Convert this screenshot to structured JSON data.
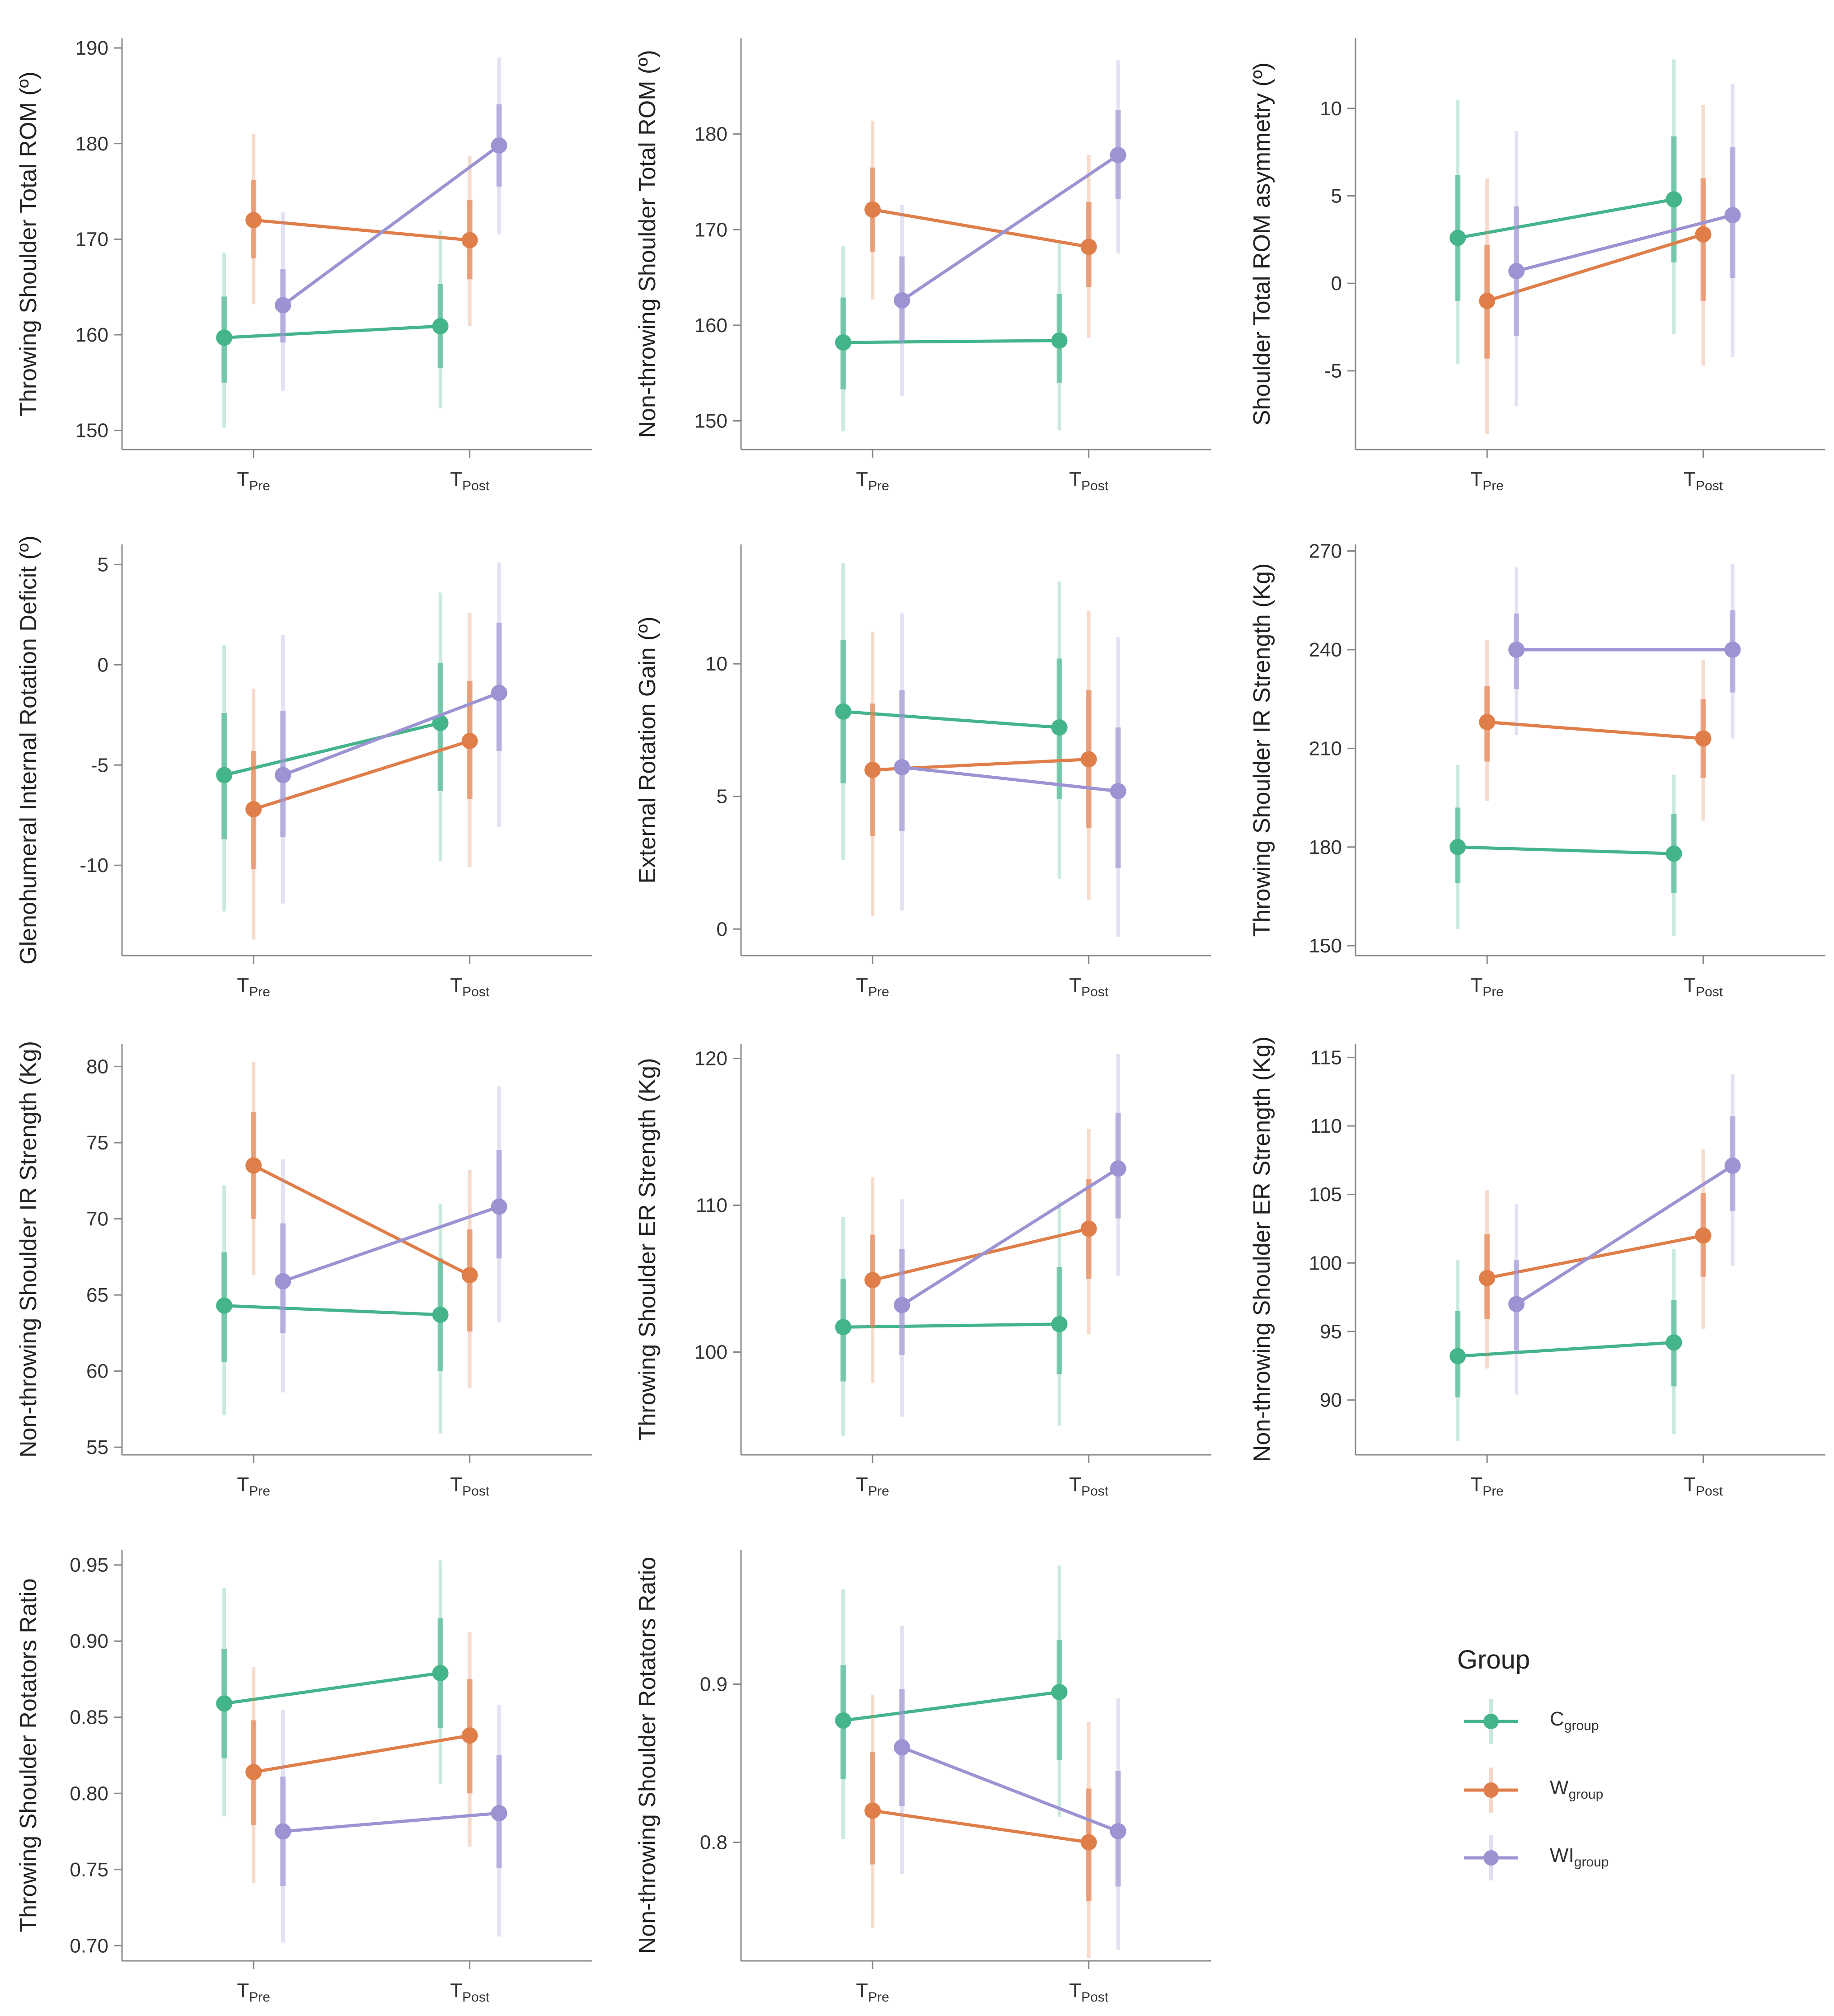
{
  "chart_data": [
    {
      "type": "line",
      "id": "p1",
      "ylabel": "Throwing Shoulder Total ROM (º)",
      "ylim": [
        148,
        191
      ],
      "yticks": [
        150,
        160,
        170,
        180,
        190
      ],
      "categories": [
        "Pre",
        "Post"
      ],
      "series": [
        {
          "name": "C",
          "values": [
            159.7,
            160.9
          ],
          "se_lo": [
            155,
            156.5
          ],
          "se_hi": [
            164,
            165.3
          ],
          "ci_lo": [
            150.3,
            152.3
          ],
          "ci_hi": [
            168.6,
            170.9
          ]
        },
        {
          "name": "W",
          "values": [
            172.0,
            169.9
          ],
          "se_lo": [
            168,
            165.8
          ],
          "se_hi": [
            176.2,
            174.1
          ],
          "ci_lo": [
            163.2,
            160.9
          ],
          "ci_hi": [
            181,
            178.7
          ]
        },
        {
          "name": "WI",
          "values": [
            163.1,
            179.8
          ],
          "se_lo": [
            159.2,
            175.5
          ],
          "se_hi": [
            166.9,
            184.1
          ],
          "ci_lo": [
            154.1,
            170.5
          ],
          "ci_hi": [
            172.8,
            189
          ]
        }
      ]
    },
    {
      "type": "line",
      "id": "p2",
      "ylabel": "Non-throwing Shoulder Total ROM (º)",
      "ylim": [
        147,
        190
      ],
      "yticks": [
        150,
        160,
        170,
        180
      ],
      "categories": [
        "Pre",
        "Post"
      ],
      "series": [
        {
          "name": "C",
          "values": [
            158.2,
            158.4
          ],
          "se_lo": [
            153.3,
            154
          ],
          "se_hi": [
            162.9,
            163.3
          ],
          "ci_lo": [
            148.9,
            149
          ],
          "ci_hi": [
            168.3,
            168.6
          ]
        },
        {
          "name": "W",
          "values": [
            172.1,
            168.2
          ],
          "se_lo": [
            167.7,
            164
          ],
          "se_hi": [
            176.5,
            172.9
          ],
          "ci_lo": [
            162.7,
            158.7
          ],
          "ci_hi": [
            181.4,
            177.8
          ]
        },
        {
          "name": "WI",
          "values": [
            162.6,
            177.8
          ],
          "se_lo": [
            158.2,
            173.2
          ],
          "se_hi": [
            167.2,
            182.5
          ],
          "ci_lo": [
            152.6,
            167.5
          ],
          "ci_hi": [
            172.6,
            187.7
          ]
        }
      ]
    },
    {
      "type": "line",
      "id": "p3",
      "ylabel": "Shoulder Total ROM asymmetry (º)",
      "ylim": [
        -9.5,
        14
      ],
      "yticks": [
        -5,
        0,
        5,
        10
      ],
      "ytick_labels": [
        "-5",
        "0",
        "5",
        "10"
      ],
      "categories": [
        "Pre",
        "Post"
      ],
      "series": [
        {
          "name": "C",
          "values": [
            2.6,
            4.8
          ],
          "se_lo": [
            -1,
            1.2
          ],
          "se_hi": [
            6.2,
            8.4
          ],
          "ci_lo": [
            -4.6,
            -2.9
          ],
          "ci_hi": [
            10.5,
            12.8
          ]
        },
        {
          "name": "W",
          "values": [
            -1.0,
            2.8
          ],
          "se_lo": [
            -4.3,
            -1
          ],
          "se_hi": [
            2.2,
            6
          ],
          "ci_lo": [
            -8.6,
            -4.7
          ],
          "ci_hi": [
            6,
            10.2
          ]
        },
        {
          "name": "WI",
          "values": [
            0.7,
            3.9
          ],
          "se_lo": [
            -3,
            0.3
          ],
          "se_hi": [
            4.4,
            7.8
          ],
          "ci_lo": [
            -7,
            -4.2
          ],
          "ci_hi": [
            8.7,
            11.4
          ]
        }
      ]
    },
    {
      "type": "line",
      "id": "p4",
      "ylabel": "Glenohumeral Internal Rotation Deficit (º)",
      "ylim": [
        -14.5,
        6
      ],
      "yticks": [
        -10,
        -5,
        0,
        5
      ],
      "ytick_labels": [
        "-10",
        "-5",
        "0",
        "5"
      ],
      "categories": [
        "Pre",
        "Post"
      ],
      "series": [
        {
          "name": "C",
          "values": [
            -5.5,
            -2.9
          ],
          "se_lo": [
            -8.7,
            -6.3
          ],
          "se_hi": [
            -2.4,
            0.1
          ],
          "ci_lo": [
            -12.3,
            -9.8
          ],
          "ci_hi": [
            1,
            3.6
          ]
        },
        {
          "name": "W",
          "values": [
            -7.2,
            -3.8
          ],
          "se_lo": [
            -10.2,
            -6.7
          ],
          "se_hi": [
            -4.3,
            -0.8
          ],
          "ci_lo": [
            -13.7,
            -10.1
          ],
          "ci_hi": [
            -1.2,
            2.6
          ]
        },
        {
          "name": "WI",
          "values": [
            -5.5,
            -1.4
          ],
          "se_lo": [
            -8.6,
            -4.3
          ],
          "se_hi": [
            -2.3,
            2.1
          ],
          "ci_lo": [
            -11.9,
            -8.1
          ],
          "ci_hi": [
            1.5,
            5.1
          ]
        }
      ]
    },
    {
      "type": "line",
      "id": "p5",
      "ylabel": "External Rotation Gain (º)",
      "ylim": [
        -1,
        14.5
      ],
      "yticks": [
        0,
        5,
        10
      ],
      "categories": [
        "Pre",
        "Post"
      ],
      "series": [
        {
          "name": "C",
          "values": [
            8.2,
            7.6
          ],
          "se_lo": [
            5.5,
            4.9
          ],
          "se_hi": [
            10.9,
            10.2
          ],
          "ci_lo": [
            2.6,
            1.9
          ],
          "ci_hi": [
            13.8,
            13.1
          ]
        },
        {
          "name": "W",
          "values": [
            6.0,
            6.4
          ],
          "se_lo": [
            3.5,
            3.8
          ],
          "se_hi": [
            8.5,
            9
          ],
          "ci_lo": [
            0.5,
            1.1
          ],
          "ci_hi": [
            11.2,
            12
          ]
        },
        {
          "name": "WI",
          "values": [
            6.1,
            5.2
          ],
          "se_lo": [
            3.7,
            2.3
          ],
          "se_hi": [
            9,
            7.6
          ],
          "ci_lo": [
            0.7,
            -0.3
          ],
          "ci_hi": [
            11.9,
            11
          ]
        }
      ]
    },
    {
      "type": "line",
      "id": "p6",
      "ylabel": "Throwing Shoulder IR Strength (Kg)",
      "ylim": [
        147,
        272
      ],
      "yticks": [
        150,
        180,
        210,
        240,
        270
      ],
      "categories": [
        "Pre",
        "Post"
      ],
      "series": [
        {
          "name": "C",
          "values": [
            180,
            178
          ],
          "se_lo": [
            169,
            166
          ],
          "se_hi": [
            192,
            190
          ],
          "ci_lo": [
            155,
            153
          ],
          "ci_hi": [
            205,
            202
          ]
        },
        {
          "name": "W",
          "values": [
            218,
            213
          ],
          "se_lo": [
            206,
            201
          ],
          "se_hi": [
            229,
            225
          ],
          "ci_lo": [
            194,
            188
          ],
          "ci_hi": [
            243,
            237
          ]
        },
        {
          "name": "WI",
          "values": [
            240,
            240
          ],
          "se_lo": [
            228,
            227
          ],
          "se_hi": [
            251,
            252
          ],
          "ci_lo": [
            214,
            213
          ],
          "ci_hi": [
            265,
            266
          ]
        }
      ]
    },
    {
      "type": "line",
      "id": "p7",
      "ylabel": "Non-throwing Shoulder IR Strength (Kg)",
      "ylim": [
        54.5,
        81.5
      ],
      "yticks": [
        55,
        60,
        65,
        70,
        75,
        80
      ],
      "categories": [
        "Pre",
        "Post"
      ],
      "series": [
        {
          "name": "C",
          "values": [
            64.3,
            63.7
          ],
          "se_lo": [
            60.6,
            60
          ],
          "se_hi": [
            67.8,
            67.4
          ],
          "ci_lo": [
            57.1,
            55.9
          ],
          "ci_hi": [
            72.2,
            71
          ]
        },
        {
          "name": "W",
          "values": [
            73.5,
            66.3
          ],
          "se_lo": [
            70,
            62.6
          ],
          "se_hi": [
            77,
            69.3
          ],
          "ci_lo": [
            66.3,
            58.9
          ],
          "ci_hi": [
            80.3,
            73.2
          ]
        },
        {
          "name": "WI",
          "values": [
            65.9,
            70.8
          ],
          "se_lo": [
            62.5,
            67.4
          ],
          "se_hi": [
            69.7,
            74.5
          ],
          "ci_lo": [
            58.6,
            63.2
          ],
          "ci_hi": [
            73.9,
            78.7
          ]
        }
      ]
    },
    {
      "type": "line",
      "id": "p8",
      "ylabel": "Throwing Shoulder ER Strength (Kg)",
      "ylim": [
        93,
        121
      ],
      "yticks": [
        100,
        110,
        120
      ],
      "categories": [
        "Pre",
        "Post"
      ],
      "series": [
        {
          "name": "C",
          "values": [
            101.7,
            101.9
          ],
          "se_lo": [
            98,
            98.5
          ],
          "se_hi": [
            105,
            105.8
          ],
          "ci_lo": [
            94.3,
            95
          ],
          "ci_hi": [
            109.2,
            110.2
          ]
        },
        {
          "name": "W",
          "values": [
            104.9,
            108.4
          ],
          "se_lo": [
            101.7,
            105
          ],
          "se_hi": [
            108,
            111.8
          ],
          "ci_lo": [
            97.9,
            101.2
          ],
          "ci_hi": [
            111.9,
            115.2
          ]
        },
        {
          "name": "WI",
          "values": [
            103.2,
            112.5
          ],
          "se_lo": [
            99.8,
            109.1
          ],
          "se_hi": [
            107,
            116.3
          ],
          "ci_lo": [
            95.6,
            105.2
          ],
          "ci_hi": [
            110.4,
            120.3
          ]
        }
      ]
    },
    {
      "type": "line",
      "id": "p9",
      "ylabel": "Non-throwing Shoulder ER Strength (Kg)",
      "ylim": [
        86,
        116
      ],
      "yticks": [
        90,
        95,
        100,
        105,
        110,
        115
      ],
      "categories": [
        "Pre",
        "Post"
      ],
      "series": [
        {
          "name": "C",
          "values": [
            93.2,
            94.2
          ],
          "se_lo": [
            90.2,
            91
          ],
          "se_hi": [
            96.5,
            97.3
          ],
          "ci_lo": [
            87,
            87.5
          ],
          "ci_hi": [
            100.2,
            101
          ]
        },
        {
          "name": "W",
          "values": [
            98.9,
            102.0
          ],
          "se_lo": [
            95.9,
            99
          ],
          "se_hi": [
            102.1,
            105.1
          ],
          "ci_lo": [
            92.3,
            95.2
          ],
          "ci_hi": [
            105.3,
            108.3
          ]
        },
        {
          "name": "WI",
          "values": [
            97.0,
            107.1
          ],
          "se_lo": [
            93.6,
            103.8
          ],
          "se_hi": [
            100.2,
            110.7
          ],
          "ci_lo": [
            90.4,
            99.8
          ],
          "ci_hi": [
            104.3,
            113.8
          ]
        }
      ]
    },
    {
      "type": "line",
      "id": "p10",
      "ylabel": "Throwing Shoulder Rotators Ratio",
      "ylim": [
        0.69,
        0.96
      ],
      "yticks": [
        0.7,
        0.75,
        0.8,
        0.85,
        0.9,
        0.95
      ],
      "ytick_labels": [
        "0.70",
        "0.75",
        "0.80",
        "0.85",
        "0.90",
        "0.95"
      ],
      "categories": [
        "Pre",
        "Post"
      ],
      "series": [
        {
          "name": "C",
          "values": [
            0.859,
            0.879
          ],
          "se_lo": [
            0.823,
            0.843
          ],
          "se_hi": [
            0.895,
            0.915
          ],
          "ci_lo": [
            0.785,
            0.806
          ],
          "ci_hi": [
            0.935,
            0.953
          ]
        },
        {
          "name": "W",
          "values": [
            0.814,
            0.838
          ],
          "se_lo": [
            0.779,
            0.8
          ],
          "se_hi": [
            0.848,
            0.875
          ],
          "ci_lo": [
            0.741,
            0.765
          ],
          "ci_hi": [
            0.883,
            0.906
          ]
        },
        {
          "name": "WI",
          "values": [
            0.775,
            0.787
          ],
          "se_lo": [
            0.739,
            0.751
          ],
          "se_hi": [
            0.811,
            0.825
          ],
          "ci_lo": [
            0.702,
            0.706
          ],
          "ci_hi": [
            0.855,
            0.858
          ]
        }
      ]
    },
    {
      "type": "line",
      "id": "p11",
      "ylabel": "Non-throwing Shoulder Rotators Ratio",
      "ylim": [
        0.725,
        0.985
      ],
      "yticks": [
        0.8,
        0.9
      ],
      "ytick_labels": [
        "0.8",
        "0.9"
      ],
      "categories": [
        "Pre",
        "Post"
      ],
      "series": [
        {
          "name": "C",
          "values": [
            0.877,
            0.895
          ],
          "se_lo": [
            0.84,
            0.852
          ],
          "se_hi": [
            0.912,
            0.928
          ],
          "ci_lo": [
            0.802,
            0.816
          ],
          "ci_hi": [
            0.96,
            0.975
          ]
        },
        {
          "name": "W",
          "values": [
            0.82,
            0.8
          ],
          "se_lo": [
            0.786,
            0.763
          ],
          "se_hi": [
            0.857,
            0.834
          ],
          "ci_lo": [
            0.746,
            0.727
          ],
          "ci_hi": [
            0.893,
            0.876
          ]
        },
        {
          "name": "WI",
          "values": [
            0.86,
            0.807
          ],
          "se_lo": [
            0.823,
            0.772
          ],
          "se_hi": [
            0.897,
            0.845
          ],
          "ci_lo": [
            0.78,
            0.732
          ],
          "ci_hi": [
            0.937,
            0.891
          ]
        }
      ]
    }
  ],
  "x_tick_labels": [
    {
      "main": "T",
      "sub": "Pre"
    },
    {
      "main": "T",
      "sub": "Post"
    }
  ],
  "legend": {
    "title": "Group",
    "items": [
      {
        "key": "C",
        "main": "C",
        "sub": "group"
      },
      {
        "key": "W",
        "main": "W",
        "sub": "group"
      },
      {
        "key": "WI",
        "main": "WI",
        "sub": "group"
      }
    ]
  },
  "colors": {
    "C": "#44b48a",
    "W": "#e07e4a",
    "WI": "#9b93d2",
    "axis": "#888888",
    "text": "#333333"
  }
}
